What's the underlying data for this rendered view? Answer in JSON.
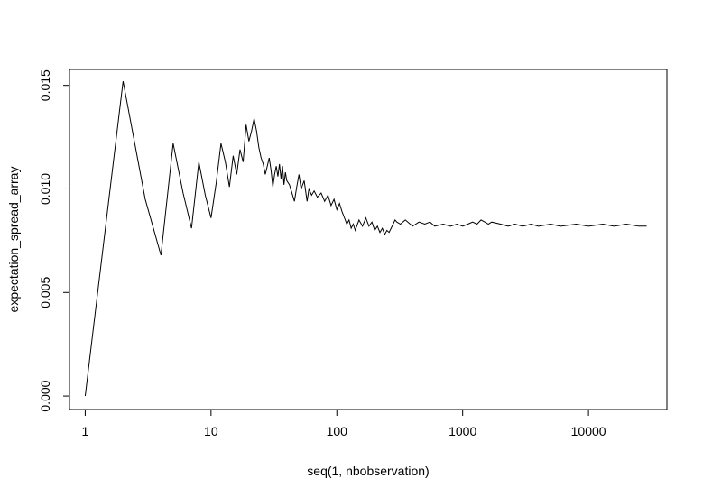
{
  "chart_data": {
    "type": "line",
    "title": "",
    "xlabel": "seq(1, nbobservation)",
    "ylabel": "expectation_spread_array",
    "x_scale": "log",
    "xlim": [
      0.75,
      42000
    ],
    "ylim": [
      -0.00065,
      0.01577
    ],
    "x_ticks": [
      1,
      10,
      100,
      1000,
      10000
    ],
    "x_tick_labels": [
      "1",
      "10",
      "100",
      "1000",
      "10000"
    ],
    "y_ticks": [
      0.0,
      0.005,
      0.01,
      0.015
    ],
    "y_tick_labels": [
      "0.000",
      "0.005",
      "0.010",
      "0.015"
    ],
    "grid": false,
    "legend": "none",
    "series": [
      {
        "color": "#000000",
        "x": [
          1,
          2,
          3,
          4,
          5,
          6,
          7,
          8,
          9,
          10,
          11,
          12,
          13,
          14,
          15,
          16,
          17,
          18,
          19,
          20,
          21,
          22,
          23,
          24,
          25,
          26,
          27,
          28,
          29,
          30,
          31,
          32,
          33,
          34,
          35,
          36,
          37,
          38,
          39,
          40,
          42,
          44,
          46,
          48,
          50,
          52,
          55,
          58,
          60,
          63,
          66,
          70,
          75,
          80,
          85,
          90,
          95,
          100,
          105,
          110,
          115,
          120,
          125,
          130,
          135,
          140,
          150,
          160,
          170,
          180,
          190,
          200,
          210,
          220,
          230,
          240,
          250,
          260,
          270,
          280,
          290,
          300,
          320,
          350,
          400,
          450,
          500,
          550,
          600,
          700,
          800,
          900,
          1000,
          1100,
          1200,
          1300,
          1400,
          1500,
          1600,
          1700,
          2000,
          2300,
          2600,
          3000,
          3500,
          4000,
          5000,
          6000,
          8000,
          10000,
          13000,
          16000,
          20000,
          25000,
          29000
        ],
        "y": [
          0.0,
          0.0152,
          0.0095,
          0.0068,
          0.0122,
          0.0098,
          0.0081,
          0.0113,
          0.0097,
          0.0086,
          0.0103,
          0.0122,
          0.0113,
          0.0101,
          0.0116,
          0.0107,
          0.0119,
          0.0113,
          0.0131,
          0.0123,
          0.0128,
          0.0134,
          0.0128,
          0.012,
          0.0115,
          0.0112,
          0.0107,
          0.0111,
          0.0115,
          0.0109,
          0.0101,
          0.0107,
          0.0111,
          0.0106,
          0.0112,
          0.0105,
          0.0111,
          0.0102,
          0.0108,
          0.0104,
          0.0102,
          0.0098,
          0.0094,
          0.0101,
          0.0107,
          0.01,
          0.0104,
          0.0094,
          0.01,
          0.0097,
          0.0099,
          0.0096,
          0.0098,
          0.0094,
          0.0097,
          0.0092,
          0.0095,
          0.009,
          0.0093,
          0.0089,
          0.0086,
          0.0083,
          0.0085,
          0.0081,
          0.0083,
          0.008,
          0.0085,
          0.0082,
          0.0086,
          0.0082,
          0.0084,
          0.008,
          0.0082,
          0.0079,
          0.0081,
          0.0078,
          0.008,
          0.0079,
          0.0081,
          0.0083,
          0.0085,
          0.0084,
          0.0083,
          0.0085,
          0.0082,
          0.0084,
          0.0083,
          0.0084,
          0.0082,
          0.0083,
          0.0082,
          0.0083,
          0.0082,
          0.0083,
          0.0084,
          0.0083,
          0.0085,
          0.0084,
          0.0083,
          0.0084,
          0.0083,
          0.0082,
          0.0083,
          0.0082,
          0.0083,
          0.0082,
          0.0083,
          0.0082,
          0.0083,
          0.0082,
          0.0083,
          0.0082,
          0.0083,
          0.0082,
          0.0082
        ]
      }
    ]
  }
}
